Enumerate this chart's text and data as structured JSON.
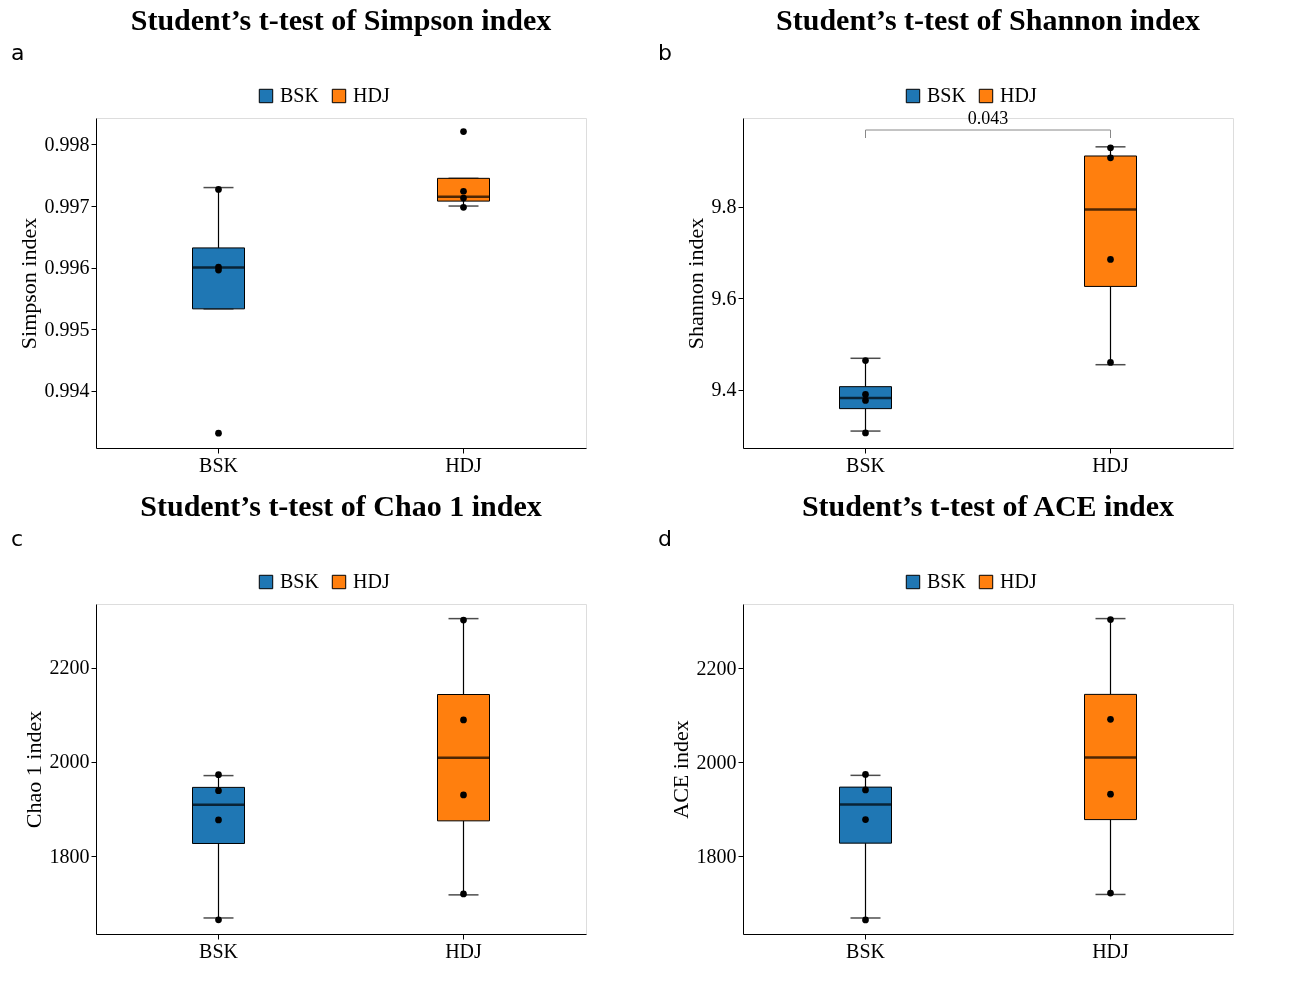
{
  "chart_data": [
    {
      "type": "box",
      "title": "Student’s t-test of Simpson index",
      "ylabel": "Simpson index",
      "categories": [
        "BSK",
        "HDJ"
      ],
      "legend": "top",
      "ylim": [
        0.99307,
        0.99843
      ],
      "yticks": [
        0.994,
        0.995,
        0.996,
        0.997,
        0.998
      ],
      "series": [
        {
          "name": "BSK",
          "color": "#1f77b4",
          "boxes": [
            {
              "low": 0.99533,
              "q1": 0.99533,
              "median": 0.996,
              "q3": 0.99632,
              "high": 0.9973
            },
            null
          ]
        },
        {
          "name": "HDJ",
          "color": "#ff7f0e",
          "boxes": [
            null,
            {
              "low": 0.997,
              "q1": 0.99708,
              "median": 0.99715,
              "q3": 0.99745,
              "high": 0.99745
            }
          ]
        },
        {
          "type": "scatter",
          "color": "#000000",
          "x": [
            "BSK",
            "BSK",
            "BSK",
            "BSK",
            "HDJ",
            "HDJ",
            "HDJ",
            "HDJ"
          ],
          "values": [
            0.99596,
            0.99727,
            0.99601,
            0.99331,
            0.99821,
            0.99724,
            0.99713,
            0.99698
          ]
        }
      ],
      "annotations": [
        "a"
      ]
    },
    {
      "type": "box",
      "title": "Student’s t-test of Shannon index",
      "ylabel": "Shannon index",
      "categories": [
        "BSK",
        "HDJ"
      ],
      "legend": "top",
      "ylim": [
        9.273,
        9.994
      ],
      "yticks": [
        9.4,
        9.6,
        9.8
      ],
      "series": [
        {
          "name": "BSK",
          "color": "#1f77b4",
          "boxes": [
            {
              "low": 9.31,
              "q1": 9.359,
              "median": 9.382,
              "q3": 9.407,
              "high": 9.469
            },
            null
          ]
        },
        {
          "name": "HDJ",
          "color": "#ff7f0e",
          "boxes": [
            null,
            {
              "low": 9.455,
              "q1": 9.626,
              "median": 9.794,
              "q3": 9.911,
              "high": 9.931
            }
          ]
        },
        {
          "type": "scatter",
          "color": "#000000",
          "x": [
            "BSK",
            "BSK",
            "BSK",
            "BSK",
            "HDJ",
            "HDJ",
            "HDJ",
            "HDJ"
          ],
          "values": [
            9.464,
            9.377,
            9.39,
            9.306,
            9.929,
            9.907,
            9.685,
            9.46
          ]
        }
      ],
      "annotations": [
        "b",
        "0.043"
      ]
    },
    {
      "type": "box",
      "title": "Student’s t-test of Chao 1 index",
      "ylabel": "Chao 1 index",
      "categories": [
        "BSK",
        "HDJ"
      ],
      "legend": "top",
      "ylim": [
        1635,
        2335
      ],
      "yticks": [
        1800,
        2000,
        2200
      ],
      "series": [
        {
          "name": "BSK",
          "color": "#1f77b4",
          "boxes": [
            {
              "low": 1669,
              "q1": 1827,
              "median": 1909,
              "q3": 1946,
              "high": 1971
            },
            null
          ]
        },
        {
          "name": "HDJ",
          "color": "#ff7f0e",
          "boxes": [
            null,
            {
              "low": 1718,
              "q1": 1875,
              "median": 2009,
              "q3": 2143,
              "high": 2304
            }
          ]
        },
        {
          "type": "scatter",
          "color": "#000000",
          "x": [
            "BSK",
            "BSK",
            "BSK",
            "BSK",
            "HDJ",
            "HDJ",
            "HDJ",
            "HDJ"
          ],
          "values": [
            1973,
            1939,
            1877,
            1665,
            2301,
            2089,
            1930,
            1720
          ]
        }
      ],
      "annotations": [
        "c"
      ]
    },
    {
      "type": "box",
      "title": "Student’s t-test of ACE index",
      "ylabel": "ACE index",
      "categories": [
        "BSK",
        "HDJ"
      ],
      "legend": "top",
      "ylim": [
        1635,
        2336
      ],
      "yticks": [
        1800,
        2000,
        2200
      ],
      "series": [
        {
          "name": "BSK",
          "color": "#1f77b4",
          "boxes": [
            {
              "low": 1669,
              "q1": 1828,
              "median": 1910,
              "q3": 1947,
              "high": 1972
            },
            null
          ]
        },
        {
          "name": "HDJ",
          "color": "#ff7f0e",
          "boxes": [
            null,
            {
              "low": 1719,
              "q1": 1878,
              "median": 2010,
              "q3": 2144,
              "high": 2305
            }
          ]
        },
        {
          "type": "scatter",
          "color": "#000000",
          "x": [
            "BSK",
            "BSK",
            "BSK",
            "BSK",
            "HDJ",
            "HDJ",
            "HDJ",
            "HDJ"
          ],
          "values": [
            1974,
            1941,
            1878,
            1665,
            2303,
            2091,
            1932,
            1722
          ]
        }
      ],
      "annotations": [
        "d"
      ]
    }
  ]
}
